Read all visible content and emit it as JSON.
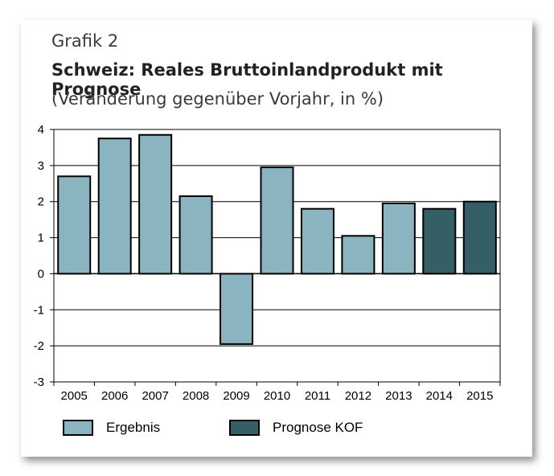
{
  "header": {
    "grafik": "Grafik 2",
    "title": "Schweiz: Reales Bruttoinlandprodukt mit Prognose",
    "subtitle": "(Veränderung gegenüber Vorjahr, in %)"
  },
  "colors": {
    "ergebnis": "#8ab4bf",
    "prognose": "#355f66"
  },
  "chart_data": {
    "type": "bar",
    "title": "Schweiz: Reales Bruttoinlandprodukt mit Prognose",
    "subtitle": "(Veränderung gegenüber Vorjahr, in %)",
    "categories": [
      "2005",
      "2006",
      "2007",
      "2008",
      "2009",
      "2010",
      "2011",
      "2012",
      "2013",
      "2014",
      "2015"
    ],
    "values": [
      2.7,
      3.75,
      3.85,
      2.15,
      -1.95,
      2.95,
      1.8,
      1.05,
      1.95,
      1.8,
      2.0
    ],
    "series_kind": [
      "Ergebnis",
      "Ergebnis",
      "Ergebnis",
      "Ergebnis",
      "Ergebnis",
      "Ergebnis",
      "Ergebnis",
      "Ergebnis",
      "Ergebnis",
      "Prognose KOF",
      "Prognose KOF"
    ],
    "yticks": [
      "4",
      "3",
      "2",
      "1",
      "0",
      "-1",
      "-2",
      "-3"
    ],
    "ylim": [
      -3,
      4
    ],
    "grid": true,
    "legend": [
      {
        "name": "Ergebnis",
        "color": "#8ab4bf"
      },
      {
        "name": "Prognose KOF",
        "color": "#355f66"
      }
    ],
    "legend_position": "bottom"
  }
}
